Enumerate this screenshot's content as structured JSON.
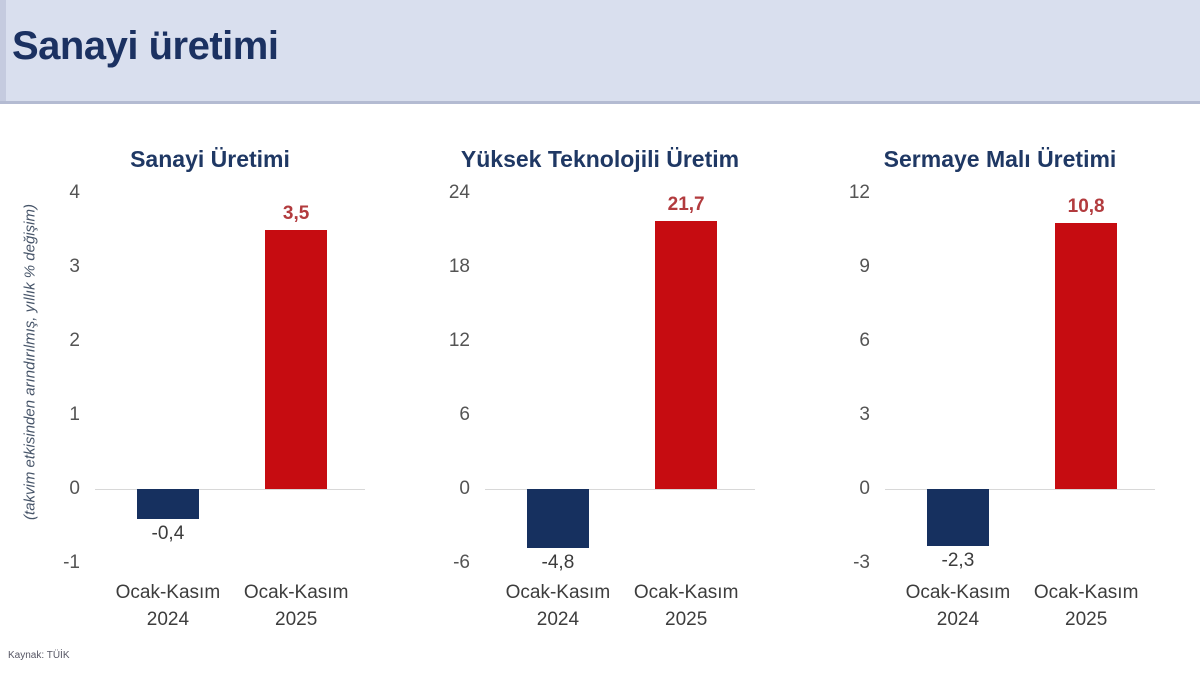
{
  "header": {
    "title": "Sanayi üretimi"
  },
  "y_axis_note": "(takvim etkisinden arındırılmış, yıllık % değişim)",
  "source": "Kaynak: TÜİK",
  "colors": {
    "header_bg": "#d9dfee",
    "header_edge": "#c5cbdf",
    "header_text": "#1b3161",
    "chart_title": "#1f3864",
    "bar_positive": "#c60c11",
    "bar_negative": "#16305f",
    "positive_label": "#b23b3e",
    "negative_label": "#3c3c3c"
  },
  "chart_data": [
    {
      "type": "bar",
      "title": "Sanayi Üretimi",
      "categories": [
        "Ocak-Kasım 2024",
        "Ocak-Kasım 2025"
      ],
      "values": [
        -0.4,
        3.5
      ],
      "value_labels": [
        "-0,4",
        "3,5"
      ],
      "yticks": [
        4,
        3,
        2,
        1,
        0,
        -1
      ],
      "ylim": [
        -1,
        4
      ],
      "ylabel": "(takvim etkisinden arındırılmış, yıllık % değişim)",
      "grid": false,
      "legend": "none"
    },
    {
      "type": "bar",
      "title": "Yüksek Teknolojili Üretim",
      "categories": [
        "Ocak-Kasım 2024",
        "Ocak-Kasım 2025"
      ],
      "values": [
        -4.8,
        21.7
      ],
      "value_labels": [
        "-4,8",
        "21,7"
      ],
      "yticks": [
        24,
        18,
        12,
        6,
        0,
        -6
      ],
      "ylim": [
        -6,
        24
      ],
      "ylabel": "(takvim etkisinden arındırılmış, yıllık % değişim)",
      "grid": false,
      "legend": "none"
    },
    {
      "type": "bar",
      "title": "Sermaye Malı Üretimi",
      "categories": [
        "Ocak-Kasım 2024",
        "Ocak-Kasım 2025"
      ],
      "values": [
        -2.3,
        10.8
      ],
      "value_labels": [
        "-2,3",
        "10,8"
      ],
      "yticks": [
        12,
        9,
        6,
        3,
        0,
        -3
      ],
      "ylim": [
        -3,
        12
      ],
      "ylabel": "(takvim etkisinden arındırılmış, yıllık % değişim)",
      "grid": false,
      "legend": "none"
    }
  ]
}
